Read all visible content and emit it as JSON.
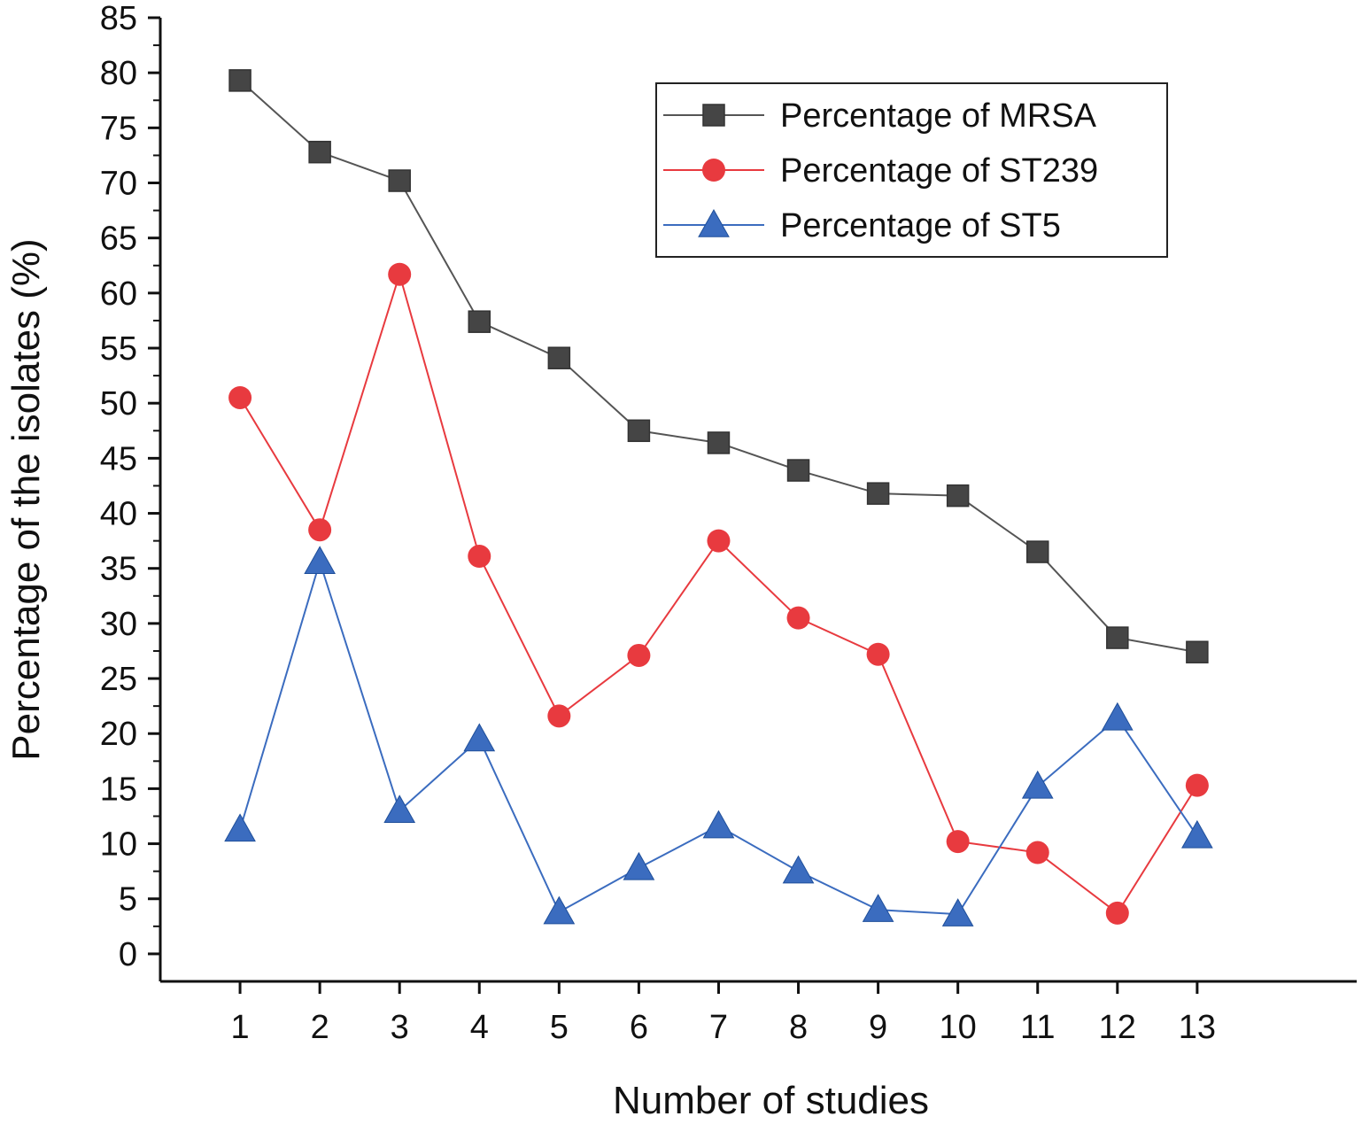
{
  "chart_data": {
    "type": "line",
    "title": "",
    "xlabel": "Number of studies",
    "ylabel": "Percentage of the isolates (%)",
    "x": [
      1,
      2,
      3,
      4,
      5,
      6,
      7,
      8,
      9,
      10,
      11,
      12,
      13
    ],
    "x_tick_labels": [
      "1",
      "2",
      "3",
      "4",
      "5",
      "6",
      "7",
      "8",
      "9",
      "10",
      "11",
      "12",
      "13"
    ],
    "xlim": [
      0,
      15
    ],
    "ylim": [
      -2.5,
      85
    ],
    "y_ticks": [
      0,
      5,
      10,
      15,
      20,
      25,
      30,
      35,
      40,
      45,
      50,
      55,
      60,
      65,
      70,
      75,
      80,
      85
    ],
    "y_tick_labels": [
      "0",
      "5",
      "10",
      "15",
      "20",
      "25",
      "30",
      "35",
      "40",
      "45",
      "50",
      "55",
      "60",
      "65",
      "70",
      "75",
      "80",
      "85"
    ],
    "grid": false,
    "legend_position": "top-right",
    "series": [
      {
        "name": "Percentage of MRSA",
        "marker": "square",
        "color": "#454545",
        "line_color": "#555555",
        "values": [
          79.3,
          72.8,
          70.2,
          57.4,
          54.1,
          47.5,
          46.4,
          43.9,
          41.8,
          41.6,
          36.5,
          28.7,
          27.4
        ]
      },
      {
        "name": "Percentage of ST239",
        "marker": "circle",
        "color": "#e83a3f",
        "line_color": "#e83a3f",
        "values": [
          50.5,
          38.5,
          61.7,
          36.1,
          21.6,
          27.1,
          37.5,
          30.5,
          27.2,
          10.2,
          9.2,
          3.7,
          15.3
        ]
      },
      {
        "name": "Percentage of ST5",
        "marker": "triangle",
        "color": "#3b6cbf",
        "line_color": "#3b6cbf",
        "values": [
          11.3,
          35.6,
          13.0,
          19.5,
          3.8,
          7.8,
          11.6,
          7.5,
          4.0,
          3.6,
          15.2,
          21.4,
          10.7
        ]
      }
    ]
  }
}
